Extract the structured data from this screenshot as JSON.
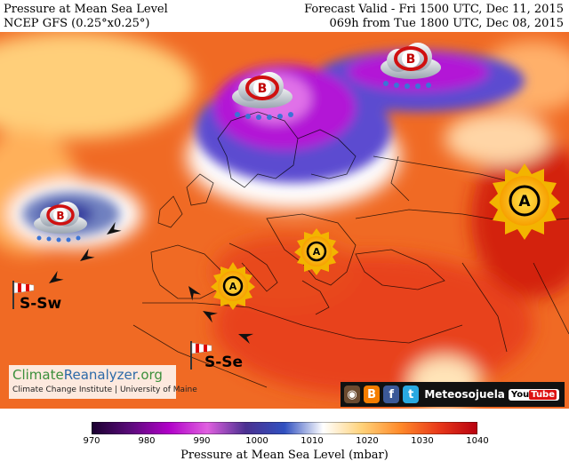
{
  "header": {
    "title_line1": "Pressure at Mean Sea Level",
    "title_line2": "NCEP GFS (0.25°x0.25°)",
    "valid_line1": "Forecast Valid - Fri 1500 UTC, Dec 11, 2015",
    "valid_line2": "069h from Tue 1800 UTC, Dec 08, 2015"
  },
  "colorbar": {
    "label": "Pressure at Mean Sea Level (mbar)",
    "ticks": [
      "970",
      "980",
      "990",
      "1000",
      "1010",
      "1020",
      "1030",
      "1040"
    ],
    "min": 970,
    "max": 1040,
    "colors": [
      "#1a0030",
      "#5a0a7a",
      "#b000c8",
      "#e060e0",
      "#4a3090",
      "#3050c0",
      "#ffffff",
      "#ffd27a",
      "#ff8a2a",
      "#e8391a",
      "#b8000f"
    ]
  },
  "pressure_systems": [
    {
      "type": "low",
      "letter": "B"
    },
    {
      "type": "low",
      "letter": "B"
    },
    {
      "type": "low",
      "letter": "B"
    },
    {
      "type": "high",
      "letter": "A"
    },
    {
      "type": "high",
      "letter": "A"
    },
    {
      "type": "high",
      "letter": "A"
    }
  ],
  "wind_labels": {
    "left": "S-Sw",
    "center": "S-Se"
  },
  "logo": {
    "name_part1": "Climate",
    "name_part2": "Reanalyzer",
    "name_part3": ".org",
    "subtitle": "Climate Change Institute | University of Maine"
  },
  "social": {
    "brand": "Meteosojuela",
    "youtube_1": "You",
    "youtube_2": "Tube"
  }
}
